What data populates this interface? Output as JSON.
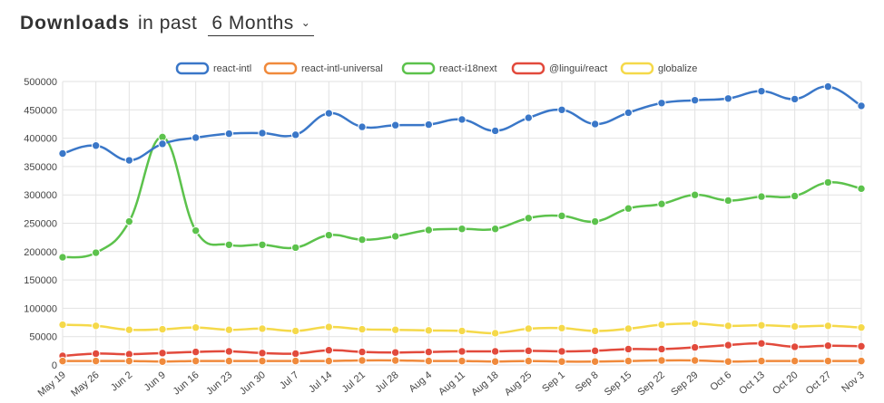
{
  "header": {
    "title_strong": "Downloads",
    "title_light": "in past",
    "period_selected": "6 Months",
    "chevron_icon": "chevron-down-icon"
  },
  "chart_data": {
    "type": "line",
    "categories": [
      "May 19",
      "May 26",
      "Jun 2",
      "Jun 9",
      "Jun 16",
      "Jun 23",
      "Jun 30",
      "Jul 7",
      "Jul 14",
      "Jul 21",
      "Jul 28",
      "Aug 4",
      "Aug 11",
      "Aug 18",
      "Aug 25",
      "Sep 1",
      "Sep 8",
      "Sep 15",
      "Sep 22",
      "Sep 29",
      "Oct 6",
      "Oct 13",
      "Oct 20",
      "Oct 27",
      "Nov 3"
    ],
    "ylim": [
      0,
      500000
    ],
    "yticks": [
      "0",
      "50000",
      "100000",
      "150000",
      "200000",
      "250000",
      "300000",
      "350000",
      "400000",
      "450000",
      "500000"
    ],
    "grid": true,
    "legend_position": "top-center",
    "series": [
      {
        "name": "react-intl",
        "color": "#3a77c8",
        "values": [
          373000,
          387000,
          361000,
          390000,
          401000,
          408000,
          409000,
          406000,
          444000,
          420000,
          423000,
          424000,
          433000,
          413000,
          436000,
          450000,
          425000,
          445000,
          462000,
          467000,
          470000,
          483000,
          469000,
          491000,
          457000
        ]
      },
      {
        "name": "react-intl-universal",
        "color": "#f08a3c",
        "values": [
          7000,
          7000,
          7000,
          6000,
          7000,
          7000,
          7000,
          7000,
          7000,
          8000,
          8000,
          7000,
          7000,
          6000,
          7000,
          6000,
          6000,
          7000,
          8000,
          8000,
          6000,
          7000,
          7000,
          7000,
          7000
        ]
      },
      {
        "name": "react-i18next",
        "color": "#5cc24c",
        "values": [
          190000,
          198000,
          253000,
          402000,
          237000,
          212000,
          212000,
          207000,
          229000,
          221000,
          227000,
          238000,
          240000,
          240000,
          259000,
          263000,
          253000,
          276000,
          284000,
          300000,
          290000,
          297000,
          298000,
          322000,
          311000
        ]
      },
      {
        "name": "@lingui/react",
        "color": "#e24a3c",
        "values": [
          16000,
          20000,
          19000,
          21000,
          23000,
          24000,
          21000,
          20000,
          26000,
          23000,
          22000,
          23000,
          24000,
          24000,
          25000,
          24000,
          25000,
          28000,
          28000,
          31000,
          35000,
          38000,
          32000,
          34000,
          33000
        ]
      },
      {
        "name": "globalize",
        "color": "#f5d94a",
        "values": [
          71000,
          69000,
          62000,
          63000,
          66000,
          62000,
          64000,
          60000,
          67000,
          63000,
          62000,
          61000,
          60000,
          56000,
          64000,
          65000,
          60000,
          64000,
          71000,
          73000,
          69000,
          70000,
          68000,
          69000,
          66000
        ]
      }
    ]
  }
}
